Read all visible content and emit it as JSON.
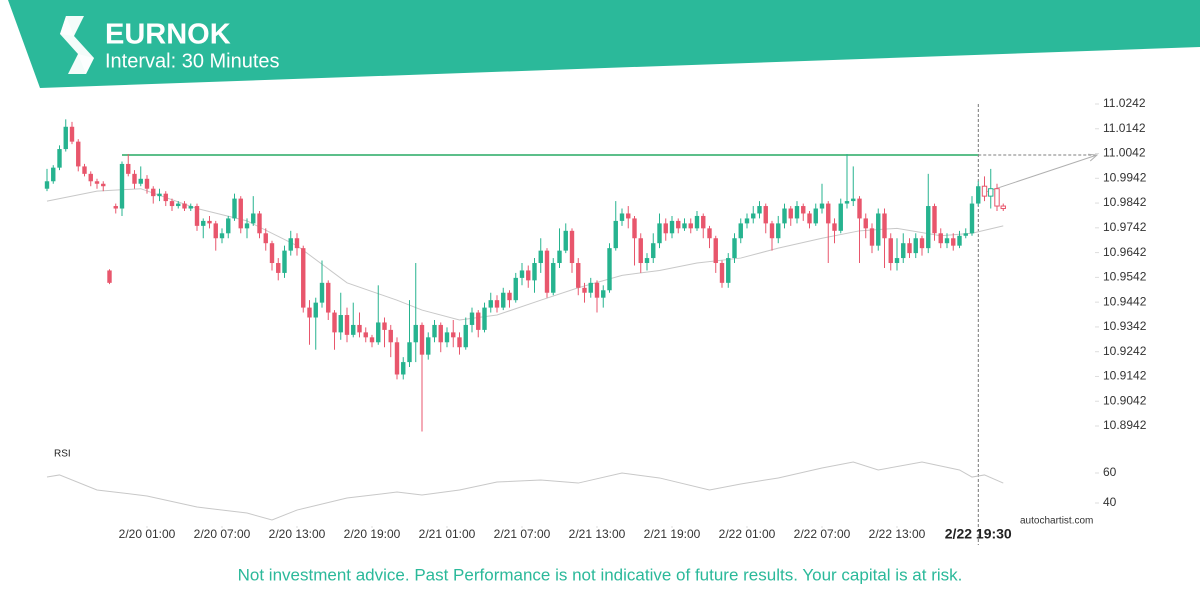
{
  "chart_data": {
    "type": "candlestick",
    "title": "EURNOK",
    "subtitle": "Interval: 30 Minutes",
    "up_color": "#26b38f",
    "down_color": "#e8566c",
    "candles": [
      [
        10.99,
        10.998,
        10.989,
        10.993
      ],
      [
        10.993,
        10.9995,
        10.992,
        10.9985
      ],
      [
        10.9985,
        11.0075,
        10.9975,
        11.006
      ],
      [
        11.006,
        11.018,
        11.005,
        11.015
      ],
      [
        11.015,
        11.017,
        11.008,
        11.009
      ],
      [
        11.009,
        11.01,
        10.997,
        10.999
      ],
      [
        10.999,
        11.0,
        10.995,
        10.996
      ],
      [
        10.996,
        10.997,
        10.991,
        10.993
      ],
      [
        10.993,
        10.994,
        10.99,
        10.992
      ],
      [
        10.992,
        10.993,
        10.989,
        10.991
      ],
      [
        10.957,
        10.9575,
        10.9515,
        10.952
      ],
      [
        10.983,
        10.984,
        10.98,
        10.982
      ],
      [
        10.982,
        11.001,
        10.979,
        11.0
      ],
      [
        11.0,
        11.004,
        10.995,
        10.996
      ],
      [
        10.996,
        10.9975,
        10.99,
        10.992
      ],
      [
        10.992,
        10.999,
        10.991,
        10.994
      ],
      [
        10.994,
        10.9955,
        10.988,
        10.99
      ],
      [
        10.99,
        10.991,
        10.984,
        10.987
      ],
      [
        10.987,
        10.99,
        10.985,
        10.988
      ],
      [
        10.988,
        10.989,
        10.983,
        10.985
      ],
      [
        10.985,
        10.986,
        10.981,
        10.983
      ],
      [
        10.983,
        10.985,
        10.982,
        10.984
      ],
      [
        10.984,
        10.985,
        10.981,
        10.982
      ],
      [
        10.982,
        10.984,
        10.981,
        10.983
      ],
      [
        10.983,
        10.984,
        10.973,
        10.975
      ],
      [
        10.975,
        10.978,
        10.97,
        10.977
      ],
      [
        10.977,
        10.979,
        10.974,
        10.976
      ],
      [
        10.976,
        10.977,
        10.965,
        10.97
      ],
      [
        10.97,
        10.974,
        10.968,
        10.972
      ],
      [
        10.972,
        10.979,
        10.97,
        10.978
      ],
      [
        10.978,
        10.988,
        10.977,
        10.986
      ],
      [
        10.986,
        10.987,
        10.972,
        10.974
      ],
      [
        10.974,
        10.978,
        10.97,
        10.976
      ],
      [
        10.976,
        10.987,
        10.975,
        10.98
      ],
      [
        10.98,
        10.981,
        10.97,
        10.972
      ],
      [
        10.972,
        10.974,
        10.965,
        10.968
      ],
      [
        10.968,
        10.969,
        10.957,
        10.96
      ],
      [
        10.96,
        10.962,
        10.953,
        10.956
      ],
      [
        10.956,
        10.967,
        10.954,
        10.965
      ],
      [
        10.965,
        10.973,
        10.963,
        10.97
      ],
      [
        10.97,
        10.972,
        10.963,
        10.966
      ],
      [
        10.966,
        10.967,
        10.94,
        10.942
      ],
      [
        10.942,
        10.945,
        10.927,
        10.938
      ],
      [
        10.938,
        10.946,
        10.925,
        10.944
      ],
      [
        10.944,
        10.961,
        10.942,
        10.952
      ],
      [
        10.952,
        10.953,
        10.937,
        10.94
      ],
      [
        10.94,
        10.941,
        10.925,
        10.932
      ],
      [
        10.932,
        10.948,
        10.929,
        10.939
      ],
      [
        10.939,
        10.942,
        10.928,
        10.931
      ],
      [
        10.931,
        10.944,
        10.93,
        10.935
      ],
      [
        10.935,
        10.94,
        10.93,
        10.932
      ],
      [
        10.932,
        10.934,
        10.928,
        10.93
      ],
      [
        10.93,
        10.931,
        10.926,
        10.928
      ],
      [
        10.928,
        10.951,
        10.927,
        10.936
      ],
      [
        10.936,
        10.938,
        10.926,
        10.933
      ],
      [
        10.933,
        10.935,
        10.922,
        10.928
      ],
      [
        10.928,
        10.93,
        10.913,
        10.915
      ],
      [
        10.915,
        10.922,
        10.913,
        10.92
      ],
      [
        10.92,
        10.945,
        10.918,
        10.928
      ],
      [
        10.928,
        10.96,
        10.92,
        10.935
      ],
      [
        10.935,
        10.936,
        10.892,
        10.923
      ],
      [
        10.923,
        10.932,
        10.921,
        10.93
      ],
      [
        10.93,
        10.937,
        10.928,
        10.935
      ],
      [
        10.935,
        10.936,
        10.924,
        10.928
      ],
      [
        10.928,
        10.934,
        10.926,
        10.932
      ],
      [
        10.932,
        10.937,
        10.926,
        10.93
      ],
      [
        10.93,
        10.932,
        10.923,
        10.926
      ],
      [
        10.926,
        10.938,
        10.925,
        10.935
      ],
      [
        10.935,
        10.942,
        10.932,
        10.94
      ],
      [
        10.94,
        10.941,
        10.93,
        10.933
      ],
      [
        10.933,
        10.944,
        10.932,
        10.942
      ],
      [
        10.942,
        10.948,
        10.94,
        10.945
      ],
      [
        10.945,
        10.947,
        10.94,
        10.942
      ],
      [
        10.942,
        10.95,
        10.941,
        10.948
      ],
      [
        10.948,
        10.949,
        10.942,
        10.945
      ],
      [
        10.945,
        10.956,
        10.944,
        10.954
      ],
      [
        10.954,
        10.96,
        10.951,
        10.957
      ],
      [
        10.957,
        10.959,
        10.95,
        10.953
      ],
      [
        10.953,
        10.962,
        10.948,
        10.96
      ],
      [
        10.96,
        10.97,
        10.956,
        10.965
      ],
      [
        10.965,
        10.966,
        10.946,
        10.948
      ],
      [
        10.948,
        10.962,
        10.947,
        10.96
      ],
      [
        10.96,
        10.974,
        10.958,
        10.965
      ],
      [
        10.965,
        10.976,
        10.964,
        10.973
      ],
      [
        10.973,
        10.974,
        10.956,
        10.96
      ],
      [
        10.96,
        10.962,
        10.947,
        10.95
      ],
      [
        10.95,
        10.952,
        10.944,
        10.948
      ],
      [
        10.948,
        10.954,
        10.946,
        10.952
      ],
      [
        10.952,
        10.953,
        10.94,
        10.946
      ],
      [
        10.946,
        10.951,
        10.942,
        10.949
      ],
      [
        10.949,
        10.968,
        10.948,
        10.966
      ],
      [
        10.966,
        10.985,
        10.965,
        10.977
      ],
      [
        10.977,
        10.982,
        10.975,
        10.98
      ],
      [
        10.98,
        10.983,
        10.974,
        10.978
      ],
      [
        10.978,
        10.979,
        10.959,
        10.97
      ],
      [
        10.97,
        10.972,
        10.956,
        10.96
      ],
      [
        10.96,
        10.964,
        10.957,
        10.962
      ],
      [
        10.962,
        10.972,
        10.96,
        10.968
      ],
      [
        10.968,
        10.98,
        10.966,
        10.976
      ],
      [
        10.976,
        10.978,
        10.969,
        10.972
      ],
      [
        10.972,
        10.979,
        10.97,
        10.977
      ],
      [
        10.977,
        10.978,
        10.972,
        10.974
      ],
      [
        10.974,
        10.978,
        10.973,
        10.976
      ],
      [
        10.976,
        10.978,
        10.972,
        10.974
      ],
      [
        10.974,
        10.981,
        10.973,
        10.979
      ],
      [
        10.979,
        10.98,
        10.97,
        10.974
      ],
      [
        10.974,
        10.975,
        10.966,
        10.97
      ],
      [
        10.97,
        10.971,
        10.956,
        10.96
      ],
      [
        10.96,
        10.961,
        10.95,
        10.952
      ],
      [
        10.952,
        10.964,
        10.95,
        10.962
      ],
      [
        10.962,
        10.972,
        10.96,
        10.97
      ],
      [
        10.97,
        10.978,
        10.968,
        10.976
      ],
      [
        10.976,
        10.98,
        10.974,
        10.978
      ],
      [
        10.978,
        10.983,
        10.976,
        10.98
      ],
      [
        10.98,
        10.985,
        10.978,
        10.983
      ],
      [
        10.983,
        10.984,
        10.972,
        10.976
      ],
      [
        10.976,
        10.977,
        10.965,
        10.97
      ],
      [
        10.97,
        10.979,
        10.968,
        10.976
      ],
      [
        10.976,
        10.984,
        10.974,
        10.982
      ],
      [
        10.982,
        10.983,
        10.975,
        10.978
      ],
      [
        10.978,
        10.985,
        10.976,
        10.983
      ],
      [
        10.983,
        10.984,
        10.977,
        10.98
      ],
      [
        10.98,
        10.981,
        10.974,
        10.976
      ],
      [
        10.976,
        10.984,
        10.975,
        10.982
      ],
      [
        10.982,
        10.992,
        10.98,
        10.984
      ],
      [
        10.984,
        10.985,
        10.96,
        10.976
      ],
      [
        10.976,
        10.978,
        10.968,
        10.973
      ],
      [
        10.973,
        10.986,
        10.972,
        10.984
      ],
      [
        10.984,
        11.004,
        10.982,
        10.985
      ],
      [
        10.985,
        10.999,
        10.983,
        10.986
      ],
      [
        10.986,
        10.987,
        10.96,
        10.978
      ],
      [
        10.978,
        10.98,
        10.97,
        10.974
      ],
      [
        10.974,
        10.976,
        10.964,
        10.967
      ],
      [
        10.967,
        10.982,
        10.965,
        10.98
      ],
      [
        10.98,
        10.982,
        10.958,
        10.97
      ],
      [
        10.97,
        10.972,
        10.957,
        10.96
      ],
      [
        10.96,
        10.97,
        10.957,
        10.962
      ],
      [
        10.962,
        10.972,
        10.96,
        10.968
      ],
      [
        10.968,
        10.97,
        10.962,
        10.964
      ],
      [
        10.964,
        10.972,
        10.962,
        10.97
      ],
      [
        10.97,
        10.971,
        10.963,
        10.966
      ],
      [
        10.966,
        10.996,
        10.964,
        10.983
      ],
      [
        10.983,
        10.984,
        10.969,
        10.972
      ],
      [
        10.972,
        10.974,
        10.966,
        10.968
      ],
      [
        10.968,
        10.972,
        10.966,
        10.97
      ],
      [
        10.97,
        10.972,
        10.965,
        10.967
      ],
      [
        10.967,
        10.973,
        10.966,
        10.971
      ],
      [
        10.971,
        10.974,
        10.97,
        10.972
      ],
      [
        10.972,
        10.987,
        10.971,
        10.984
      ],
      [
        10.984,
        10.993,
        10.983,
        10.991
      ],
      [
        10.991,
        10.995,
        10.985,
        10.987
      ],
      [
        10.987,
        10.998,
        10.982,
        10.99
      ],
      [
        10.99,
        10.992,
        10.981,
        10.983
      ],
      [
        10.983,
        10.984,
        10.981,
        10.982
      ]
    ],
    "ma": {
      "color": "#c8c8c8",
      "x": [
        0,
        8,
        15,
        24,
        32,
        40,
        48,
        56,
        60,
        66,
        72,
        79,
        85,
        92,
        98,
        104,
        111,
        117,
        124,
        130,
        136,
        143,
        148,
        153
      ],
      "values": [
        10.985,
        10.989,
        10.99,
        10.982,
        10.977,
        10.967,
        10.952,
        10.945,
        10.941,
        10.937,
        10.939,
        10.945,
        10.95,
        10.955,
        10.957,
        10.96,
        10.962,
        10.966,
        10.97,
        10.973,
        10.974,
        10.971,
        10.972,
        10.975
      ]
    },
    "resistance": {
      "value": 11.0036,
      "x": [
        12,
        149
      ],
      "color": "#5cbf8a"
    },
    "projection": {
      "x": [
        150,
        168
      ],
      "values": [
        10.9885,
        11.0036
      ],
      "color": "#b0b0b0"
    },
    "current_time": {
      "value": 149,
      "label": "2/22 19:30"
    },
    "xlim": [
      -1,
      168
    ],
    "xticks": [
      {
        "value": 16,
        "label": "2/20 01:00"
      },
      {
        "value": 28,
        "label": "2/20 07:00"
      },
      {
        "value": 40,
        "label": "2/20 13:00"
      },
      {
        "value": 52,
        "label": "2/20 19:00"
      },
      {
        "value": 64,
        "label": "2/21 01:00"
      },
      {
        "value": 76,
        "label": "2/21 07:00"
      },
      {
        "value": 88,
        "label": "2/21 13:00"
      },
      {
        "value": 100,
        "label": "2/21 19:00"
      },
      {
        "value": 112,
        "label": "2/22 01:00"
      },
      {
        "value": 124,
        "label": "2/22 07:00"
      },
      {
        "value": 136,
        "label": "2/22 13:00"
      }
    ],
    "ylim": [
      10.88855,
      11.02904
    ],
    "yticks": [
      11.0242,
      11.0142,
      11.0042,
      10.9942,
      10.9842,
      10.9742,
      10.9642,
      10.9542,
      10.9442,
      10.9342,
      10.9242,
      10.9142,
      10.9042,
      10.8942
    ],
    "rsi": {
      "label": "RSI",
      "color": "#c8c8c8",
      "ylim": [
        28,
        72
      ],
      "yticks": [
        60,
        40
      ],
      "x": [
        0,
        2,
        8,
        16,
        24,
        32,
        36,
        40,
        48,
        56,
        60,
        66,
        72,
        79,
        85,
        92,
        98,
        106,
        111,
        117,
        124,
        129,
        133,
        140,
        146,
        148,
        150,
        153
      ],
      "values": [
        57.3,
        58.7,
        48.7,
        44.7,
        37.3,
        33.3,
        28.7,
        35.3,
        43.3,
        47.3,
        45.3,
        48.7,
        54,
        55.3,
        53.3,
        60,
        56.7,
        48.7,
        52.7,
        56.7,
        63.3,
        67.3,
        62,
        67.3,
        62,
        57.3,
        58.7,
        53.3
      ]
    },
    "source": "autochartist.com",
    "disclaimer": "Not investment advice. Past Performance is not indicative of future results. Your capital is at risk."
  }
}
